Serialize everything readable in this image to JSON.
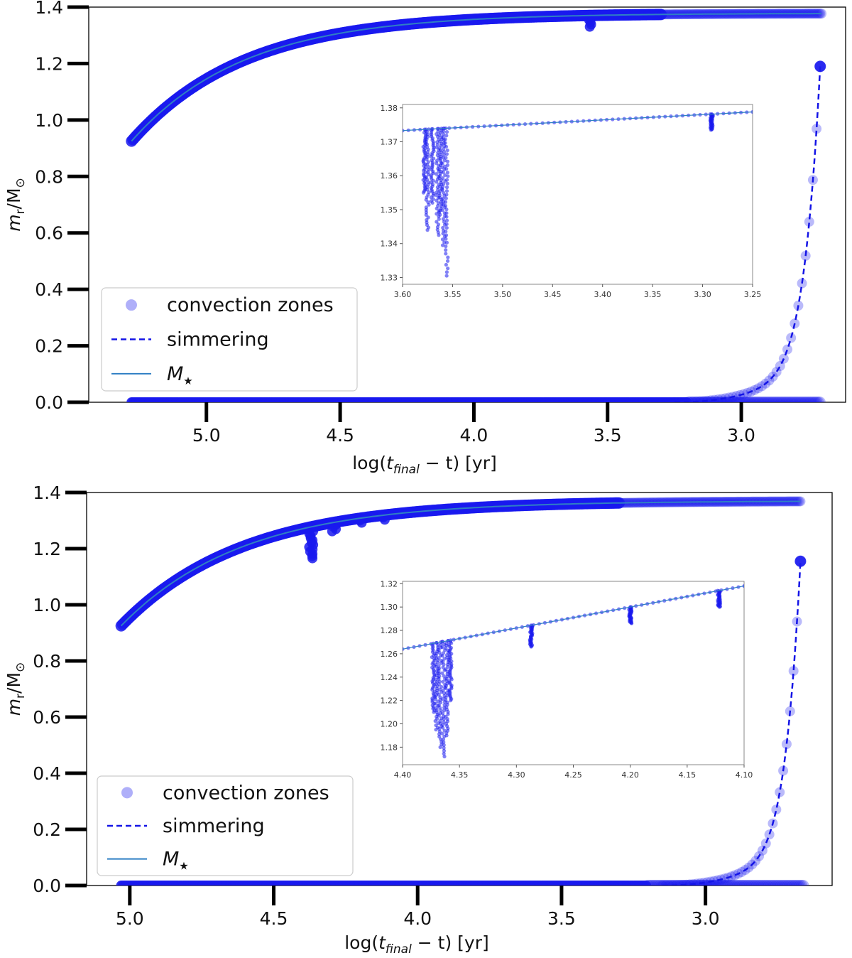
{
  "figure": {
    "description_panels": 2
  },
  "colors": {
    "points": "#1a1aee",
    "simmering": "#1414e6",
    "mstar": "#2f7fc4",
    "axis": "#000000",
    "inset_frame": "#888888"
  },
  "chart_data": [
    {
      "id": "top",
      "type": "scatter",
      "xlabel": "log(t_final − t)  [yr]",
      "xlabel_parts": {
        "prefix": "log(",
        "t": "t",
        "sub": "final",
        "suffix": " − t)  [yr]"
      },
      "ylabel": "m_r/M_⊙",
      "ylabel_parts": {
        "m": "m",
        "sub": "r",
        "rest": "/M",
        "sun": "⊙"
      },
      "xlim": [
        5.44,
        2.61
      ],
      "ylim": [
        0,
        1.4
      ],
      "xticks": [
        5.0,
        4.5,
        4.0,
        3.5,
        3.0
      ],
      "xtick_labels": [
        "5.0",
        "4.5",
        "4.0",
        "3.5",
        "3.0"
      ],
      "yticks": [
        0.0,
        0.2,
        0.4,
        0.6,
        0.8,
        1.0,
        1.2,
        1.4
      ],
      "ytick_labels": [
        "0.0",
        "0.2",
        "0.4",
        "0.6",
        "0.8",
        "1.0",
        "1.2",
        "1.4"
      ],
      "mstar": {
        "x_start": 5.28,
        "y_start": 0.925,
        "y_end": 1.378,
        "x_end": 2.7,
        "tau": 0.42
      },
      "simmering": {
        "x_end": 2.705,
        "y_end": 1.19,
        "x_start": 3.25
      },
      "bottom_zone": {
        "x_start": 5.28,
        "x_end": 2.7,
        "y": 0.0
      },
      "dips": [
        {
          "x": 3.565,
          "y_min": 1.33
        }
      ],
      "legend": {
        "location": "lower left",
        "entries": [
          {
            "label": "convection zones",
            "style": "circle"
          },
          {
            "label": "simmering",
            "style": "dashed"
          },
          {
            "label": "M",
            "sub": "★",
            "style": "line"
          }
        ]
      },
      "inset": {
        "xlim": [
          3.6,
          3.25
        ],
        "ylim": [
          1.328,
          1.381
        ],
        "xticks": [
          3.6,
          3.55,
          3.5,
          3.45,
          3.4,
          3.35,
          3.3,
          3.25
        ],
        "xtick_labels": [
          "3.60",
          "3.55",
          "3.50",
          "3.45",
          "3.40",
          "3.35",
          "3.30",
          "3.25"
        ],
        "yticks": [
          1.33,
          1.34,
          1.35,
          1.36,
          1.37,
          1.38
        ],
        "ytick_labels": [
          "1.33",
          "1.34",
          "1.35",
          "1.36",
          "1.37",
          "1.38"
        ],
        "mstar_line": {
          "x": [
            3.6,
            3.25
          ],
          "y": [
            1.3733,
            1.3788
          ]
        },
        "dips": [
          {
            "x": 3.578,
            "y_min": 1.355
          },
          {
            "x": 3.575,
            "y_min": 1.344
          },
          {
            "x": 3.57,
            "y_min": 1.352
          },
          {
            "x": 3.565,
            "y_min": 1.3425
          },
          {
            "x": 3.562,
            "y_min": 1.3485
          },
          {
            "x": 3.559,
            "y_min": 1.3395
          },
          {
            "x": 3.556,
            "y_min": 1.3305
          },
          {
            "x": 3.291,
            "y_min": 1.3735
          }
        ]
      }
    },
    {
      "id": "bottom",
      "type": "scatter",
      "xlabel": "log(t_final − t)  [yr]",
      "xlabel_parts": {
        "prefix": "log(",
        "t": "t",
        "sub": "final",
        "suffix": " − t)  [yr]"
      },
      "ylabel": "m_r/M_⊙",
      "ylabel_parts": {
        "m": "m",
        "sub": "r",
        "rest": "/M",
        "sun": "⊙"
      },
      "xlim": [
        5.15,
        2.56
      ],
      "ylim": [
        0,
        1.4
      ],
      "xticks": [
        5.0,
        4.5,
        4.0,
        3.5,
        3.0
      ],
      "xtick_labels": [
        "5.0",
        "4.5",
        "4.0",
        "3.5",
        "3.0"
      ],
      "yticks": [
        0.0,
        0.2,
        0.4,
        0.6,
        0.8,
        1.0,
        1.2,
        1.4
      ],
      "ytick_labels": [
        "0.0",
        "0.2",
        "0.4",
        "0.6",
        "0.8",
        "1.0",
        "1.2",
        "1.4"
      ],
      "mstar": {
        "x_start": 5.03,
        "y_start": 0.925,
        "y_end": 1.37,
        "x_end": 2.67,
        "tau": 0.42
      },
      "simmering": {
        "x_end": 2.67,
        "y_end": 1.155,
        "x_start": 3.15
      },
      "bottom_zone": {
        "x_start": 5.03,
        "x_end": 2.66,
        "y": 0.0
      },
      "dips": [
        {
          "x": 4.37,
          "y_min": 1.165
        },
        {
          "x": 4.29,
          "y_min": 1.26
        },
        {
          "x": 4.2,
          "y_min": 1.285
        },
        {
          "x": 4.12,
          "y_min": 1.3
        }
      ],
      "legend": {
        "location": "lower left",
        "entries": [
          {
            "label": "convection zones",
            "style": "circle"
          },
          {
            "label": "simmering",
            "style": "dashed"
          },
          {
            "label": "M",
            "sub": "★",
            "style": "line"
          }
        ]
      },
      "inset": {
        "xlim": [
          4.4,
          4.1
        ],
        "ylim": [
          1.165,
          1.322
        ],
        "xticks": [
          4.4,
          4.35,
          4.3,
          4.25,
          4.2,
          4.15,
          4.1
        ],
        "xtick_labels": [
          "4.40",
          "4.35",
          "4.30",
          "4.25",
          "4.20",
          "4.15",
          "4.10"
        ],
        "yticks": [
          1.18,
          1.2,
          1.22,
          1.24,
          1.26,
          1.28,
          1.3,
          1.32
        ],
        "ytick_labels": [
          "1.18",
          "1.20",
          "1.22",
          "1.24",
          "1.26",
          "1.28",
          "1.30",
          "1.32"
        ],
        "mstar_line": {
          "x": [
            4.4,
            4.1
          ],
          "y": [
            1.264,
            1.318
          ]
        },
        "dips": [
          {
            "x": 4.373,
            "y_min": 1.21
          },
          {
            "x": 4.37,
            "y_min": 1.195
          },
          {
            "x": 4.367,
            "y_min": 1.18
          },
          {
            "x": 4.364,
            "y_min": 1.172
          },
          {
            "x": 4.361,
            "y_min": 1.19
          },
          {
            "x": 4.358,
            "y_min": 1.22
          },
          {
            "x": 4.287,
            "y_min": 1.266
          },
          {
            "x": 4.2,
            "y_min": 1.286
          },
          {
            "x": 4.122,
            "y_min": 1.3
          }
        ]
      }
    }
  ]
}
